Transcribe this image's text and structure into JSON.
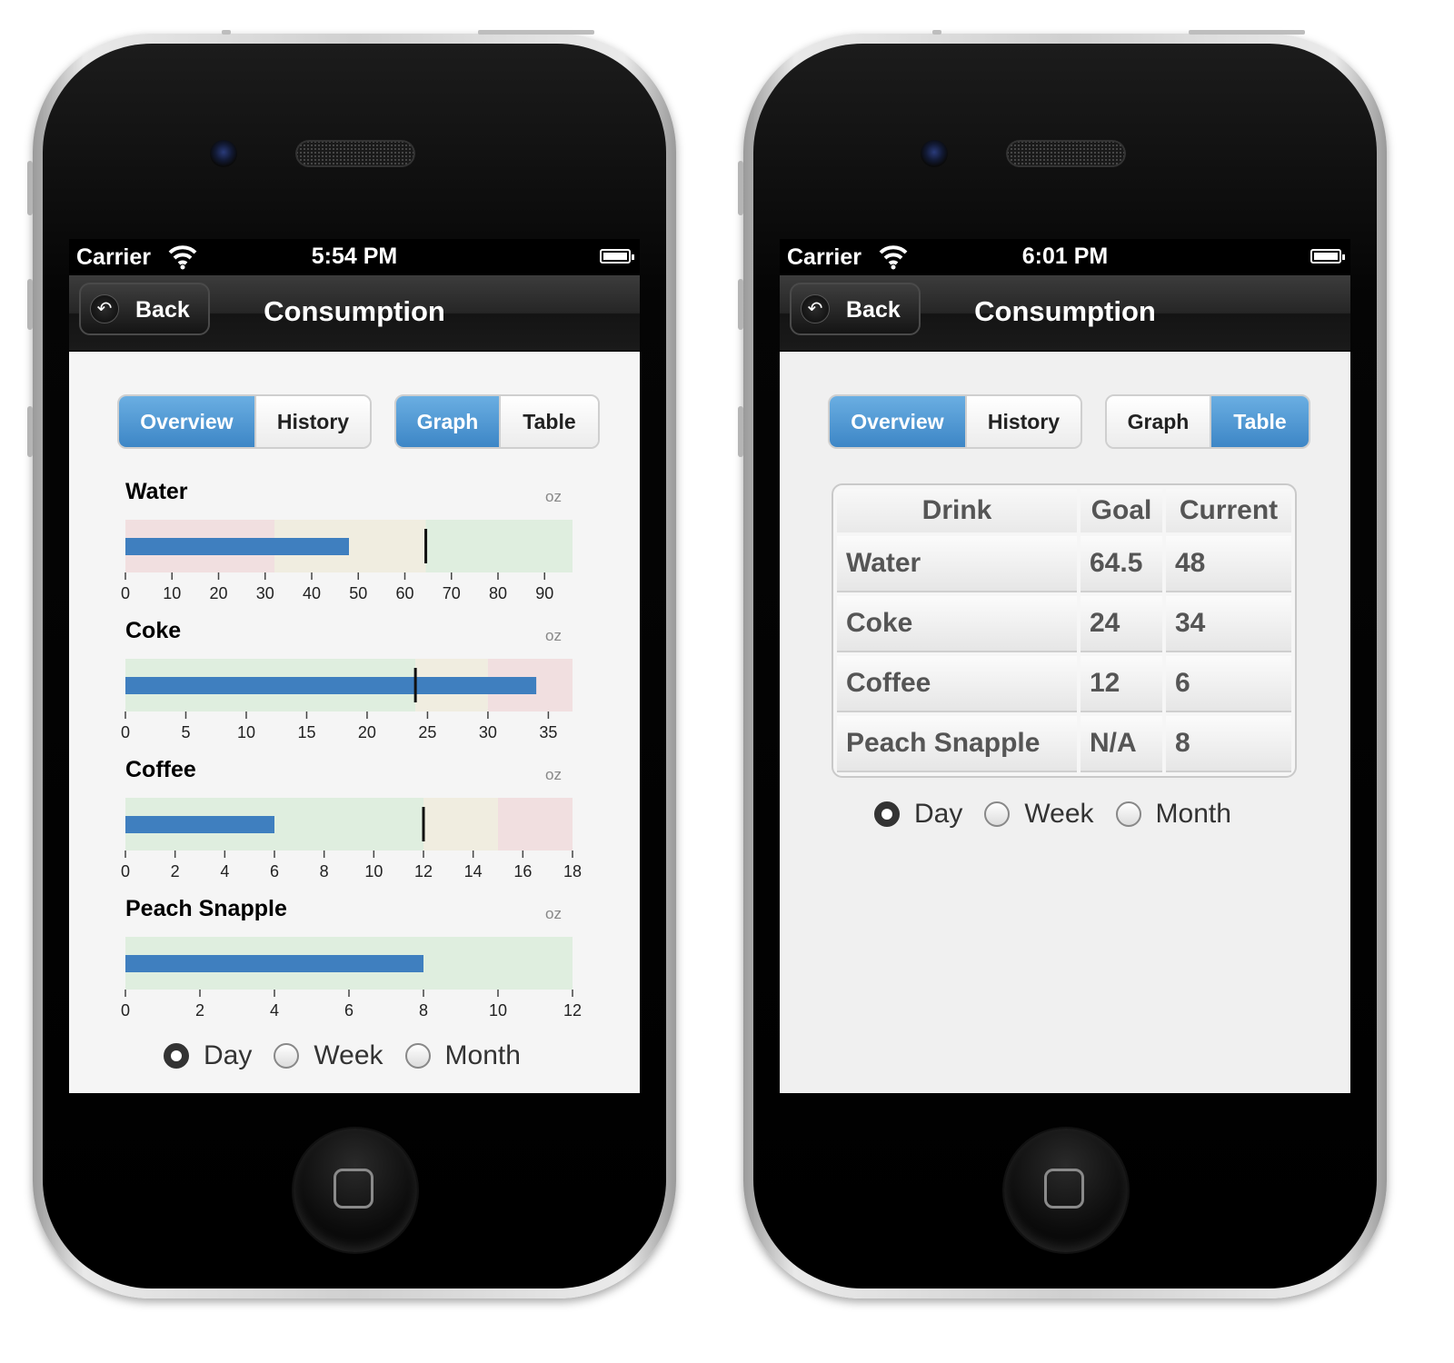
{
  "phones": {
    "left": {
      "status": {
        "carrier": "Carrier",
        "time": "5:54 PM"
      },
      "nav": {
        "back": "Back",
        "title": "Consumption"
      },
      "seg1": [
        "Overview",
        "History"
      ],
      "seg2": [
        "Graph",
        "Table"
      ],
      "radios": [
        "Day",
        "Week",
        "Month"
      ],
      "selected_radio": "Day"
    },
    "right": {
      "status": {
        "carrier": "Carrier",
        "time": "6:01 PM"
      },
      "nav": {
        "back": "Back",
        "title": "Consumption"
      },
      "seg1": [
        "Overview",
        "History"
      ],
      "seg2": [
        "Graph",
        "Table"
      ],
      "table": {
        "headers": [
          "Drink",
          "Goal",
          "Current"
        ],
        "rows": [
          [
            "Water",
            "64.5",
            "48"
          ],
          [
            "Coke",
            "24",
            "34"
          ],
          [
            "Coffee",
            "12",
            "6"
          ],
          [
            "Peach Snapple",
            "N/A",
            "8"
          ]
        ]
      },
      "radios": [
        "Day",
        "Week",
        "Month"
      ],
      "selected_radio": "Day"
    }
  },
  "colors": {
    "accent": "#4a90cc",
    "bar": "#3f7fbf",
    "good": "#dfeedf",
    "warn": "#f0ede0",
    "bad": "#f1dfe0"
  },
  "chart_data": [
    {
      "type": "bullet",
      "title": "Water",
      "unit": "oz",
      "value": 48,
      "target": 64.5,
      "max": 96,
      "ticks": [
        0,
        10,
        20,
        30,
        40,
        50,
        60,
        70,
        80,
        90
      ],
      "ranges": [
        {
          "to": 32,
          "status": "bad"
        },
        {
          "to": 64.5,
          "status": "warn"
        },
        {
          "to": 96,
          "status": "good"
        }
      ]
    },
    {
      "type": "bullet",
      "title": "Coke",
      "unit": "oz",
      "value": 34,
      "target": 24,
      "max": 37,
      "ticks": [
        0,
        5,
        10,
        15,
        20,
        25,
        30,
        35
      ],
      "ranges": [
        {
          "to": 24,
          "status": "good"
        },
        {
          "to": 30,
          "status": "warn"
        },
        {
          "to": 37,
          "status": "bad"
        }
      ]
    },
    {
      "type": "bullet",
      "title": "Coffee",
      "unit": "oz",
      "value": 6,
      "target": 12,
      "max": 18,
      "ticks": [
        0,
        2,
        4,
        6,
        8,
        10,
        12,
        14,
        16,
        18
      ],
      "ranges": [
        {
          "to": 12,
          "status": "good"
        },
        {
          "to": 15,
          "status": "warn"
        },
        {
          "to": 18,
          "status": "bad"
        }
      ]
    },
    {
      "type": "bullet",
      "title": "Peach Snapple",
      "unit": "oz",
      "value": 8,
      "target": null,
      "max": 12,
      "ticks": [
        0,
        2,
        4,
        6,
        8,
        10,
        12
      ],
      "ranges": [
        {
          "to": 12,
          "status": "good"
        }
      ]
    }
  ]
}
